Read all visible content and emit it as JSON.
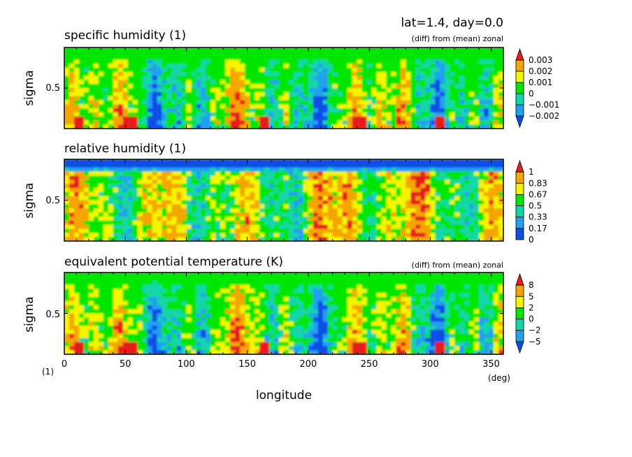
{
  "header": {
    "title": "lat=1.4, day=0.0"
  },
  "colors": {
    "dark_blue": "#0a50e6",
    "blue": "#23a0f0",
    "cyan": "#12d6a8",
    "green": "#00e600",
    "yellow": "#f5f500",
    "orange": "#f5a500",
    "red": "#e61e1e"
  },
  "chart_data": [
    {
      "type": "heatmap",
      "title": "specific humidity (1)",
      "subtitle": "(diff) from (mean) zonal",
      "ylabel": "sigma",
      "yticks": [
        "0.5"
      ],
      "xlim": [
        0,
        360
      ],
      "colorbar": [
        "0.003",
        "0.002",
        "0.001",
        "0",
        "−0.001",
        "−0.002"
      ]
    },
    {
      "type": "heatmap",
      "title": "relative humidity (1)",
      "subtitle": "",
      "ylabel": "sigma",
      "yticks": [
        "0.5"
      ],
      "xlim": [
        0,
        360
      ],
      "colorbar": [
        "1",
        "0.83",
        "0.67",
        "0.5",
        "0.33",
        "0.17",
        "0"
      ]
    },
    {
      "type": "heatmap",
      "title": "equivalent potential temperature (K)",
      "subtitle": "(diff) from (mean) zonal",
      "ylabel": "sigma",
      "yticks": [
        "0.5"
      ],
      "xlim": [
        0,
        360
      ],
      "colorbar": [
        "8",
        "5",
        "2",
        "0",
        "−2",
        "−5"
      ]
    }
  ],
  "x_axis": {
    "label": "longitude",
    "unit": "(deg)",
    "origin_label": "(1)",
    "ticks": [
      "0",
      "50",
      "100",
      "150",
      "200",
      "250",
      "300",
      "350"
    ]
  }
}
